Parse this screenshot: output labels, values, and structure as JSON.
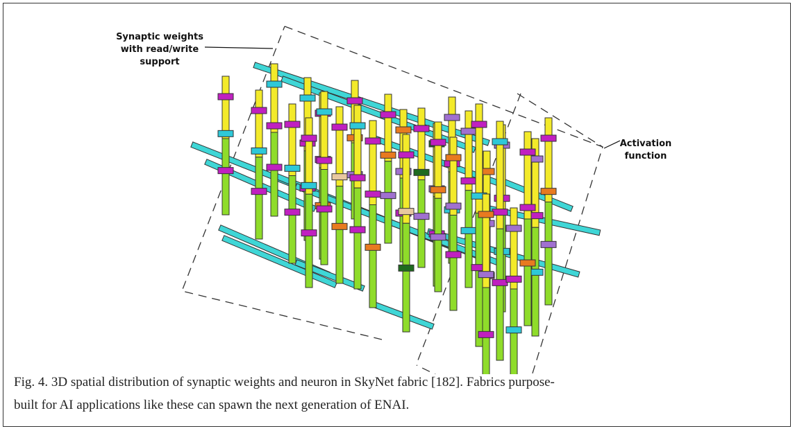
{
  "figure": {
    "labels": {
      "synaptic": [
        "Synaptic weights",
        "with read/write",
        "support"
      ],
      "activation": [
        "Activation",
        "function"
      ]
    },
    "caption": [
      "Fig. 4. 3D spatial distribution of synaptic weights and neuron in SkyNet fabric [182]. Fabrics purpose-",
      "built for AI applications like these can spawn the next generation of ENAI."
    ]
  }
}
